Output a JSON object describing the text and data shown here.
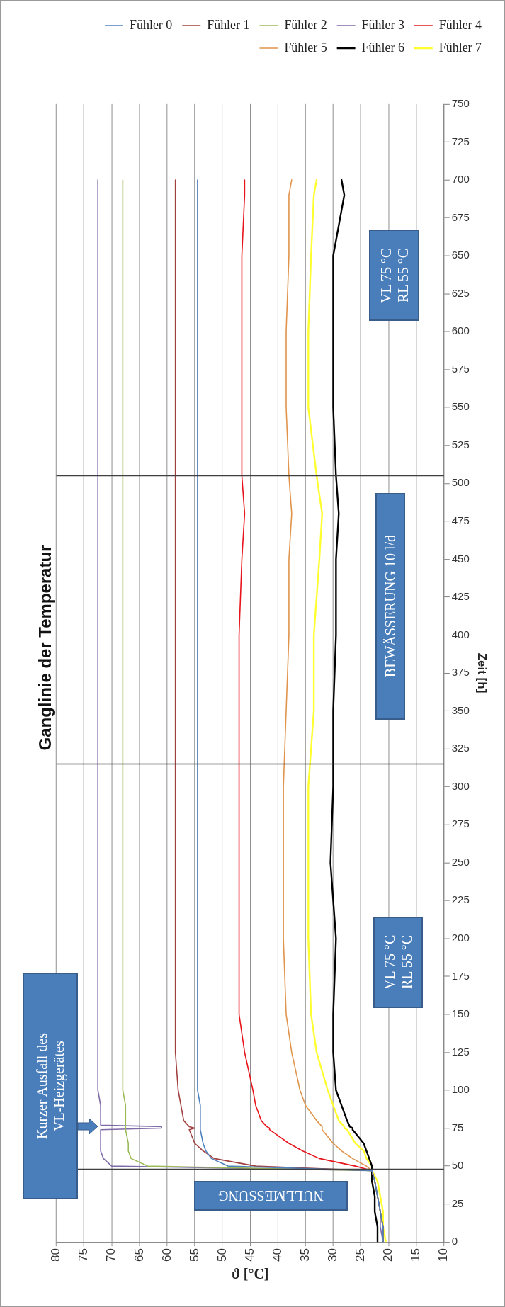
{
  "chart_data": {
    "type": "line",
    "title": "Ganglinie der Temperatur",
    "xlabel": "ϑ [°C]",
    "ylabel": "Zeit [h]",
    "series": [
      {
        "name": "Fühler 0",
        "color": "#4f81bd",
        "x": [
          21,
          21,
          21.5,
          22,
          22.5,
          23,
          49,
          52,
          53,
          53.5,
          54,
          54,
          54.5,
          54.5
        ],
        "values": [
          0,
          10,
          20,
          30,
          40,
          47,
          50,
          55,
          60,
          65,
          74,
          90,
          100,
          700
        ]
      },
      {
        "name": "Fühler 1",
        "color": "#a0413f",
        "x": [
          21,
          21,
          21.5,
          22,
          22.5,
          23,
          44,
          51.5,
          53.5,
          55,
          56,
          55,
          56,
          57,
          57.5,
          58,
          58.5,
          58.5
        ],
        "values": [
          0,
          10,
          20,
          30,
          40,
          47,
          50,
          55,
          60,
          65,
          74,
          75,
          76,
          80,
          90,
          100,
          125,
          700
        ]
      },
      {
        "name": "Fühler 2",
        "color": "#9bbb59",
        "x": [
          21,
          21,
          21.5,
          22,
          22.5,
          23,
          63.5,
          66.5,
          67,
          67,
          67.5,
          67.5,
          68,
          68
        ],
        "values": [
          0,
          10,
          20,
          30,
          40,
          47,
          50,
          55,
          60,
          65,
          74,
          90,
          100,
          700
        ]
      },
      {
        "name": "Fühler 3",
        "color": "#7f6aa8",
        "x": [
          21,
          21.5,
          21.5,
          22,
          22.5,
          23,
          70,
          71.5,
          72,
          72,
          61,
          61,
          72,
          72,
          72.5,
          72.5
        ],
        "values": [
          0,
          10,
          20,
          30,
          40,
          47,
          50,
          55,
          60,
          74,
          75,
          76,
          77,
          90,
          100,
          700
        ]
      },
      {
        "name": "Fühler 4",
        "color": "#e8141c",
        "x": [
          22.5,
          23,
          26,
          32.5,
          35.5,
          38,
          41.5,
          41.5,
          42,
          43,
          44,
          44.5,
          46,
          47,
          47,
          46.5,
          46,
          46.5,
          46.5,
          46,
          46
        ],
        "values": [
          40,
          47,
          50,
          55,
          60,
          65,
          74,
          75,
          76,
          80,
          90,
          100,
          125,
          150,
          400,
          450,
          480,
          505,
          650,
          690,
          700
        ]
      },
      {
        "name": "Fühler 5",
        "color": "#e0944c",
        "x": [
          21,
          21,
          21.5,
          22,
          22.5,
          23,
          24,
          26.5,
          28.5,
          30,
          32,
          32,
          33,
          35,
          36,
          37.5,
          38.5,
          39,
          39,
          38.5,
          38,
          38,
          37.5,
          38,
          38.5,
          38.5,
          38,
          38,
          37.5
        ],
        "values": [
          0,
          10,
          20,
          30,
          40,
          47,
          50,
          55,
          60,
          65,
          74,
          76,
          80,
          90,
          100,
          125,
          150,
          200,
          300,
          350,
          400,
          450,
          480,
          505,
          550,
          600,
          650,
          690,
          700
        ]
      },
      {
        "name": "Fühler 6",
        "color": "#000000",
        "x": [
          22,
          22,
          22.5,
          22.5,
          23,
          23,
          23.5,
          24,
          24.5,
          26.5,
          26.5,
          27,
          27.5,
          28.5,
          29.5,
          30,
          30,
          29.5,
          30.5,
          30,
          30,
          29.5,
          29.5,
          29,
          29.5,
          30,
          30,
          28,
          28.5
        ],
        "values": [
          0,
          10,
          20,
          30,
          40,
          50,
          55,
          60,
          65,
          74,
          75,
          76,
          80,
          90,
          100,
          125,
          150,
          200,
          250,
          300,
          350,
          400,
          450,
          480,
          505,
          550,
          650,
          690,
          700
        ]
      },
      {
        "name": "Fühler 7",
        "color": "#ffff30",
        "x": [
          20.5,
          21,
          21,
          21.5,
          22,
          23,
          23,
          24,
          24.5,
          26,
          27.5,
          28,
          28,
          29,
          30,
          31,
          33,
          34,
          34.5,
          34.5,
          33.5,
          33.5,
          32.5,
          32,
          33,
          34.5,
          34.5,
          34,
          33.5,
          33
        ],
        "values": [
          0,
          10,
          20,
          30,
          40,
          47,
          50,
          55,
          60,
          65,
          74,
          75,
          76,
          80,
          90,
          100,
          125,
          150,
          200,
          300,
          350,
          400,
          450,
          480,
          505,
          550,
          600,
          650,
          690,
          700
        ]
      }
    ],
    "xlim": [
      80,
      10
    ],
    "xticks": [
      80,
      75,
      70,
      65,
      60,
      55,
      50,
      45,
      40,
      35,
      30,
      25,
      20,
      15,
      10
    ],
    "ylim": [
      0,
      750
    ],
    "yticks": [
      0,
      25,
      50,
      75,
      100,
      125,
      150,
      175,
      200,
      225,
      250,
      275,
      300,
      325,
      350,
      375,
      400,
      425,
      450,
      475,
      500,
      525,
      550,
      575,
      600,
      625,
      650,
      675,
      700,
      725,
      750
    ],
    "grid": "x",
    "legend": "top right",
    "marker": "none",
    "line_style": "solid",
    "ref_lines": [
      {
        "axis": "y",
        "value": 48,
        "color": "#404040"
      },
      {
        "axis": "y",
        "value": 315,
        "color": "#404040"
      },
      {
        "axis": "y",
        "value": 505,
        "color": "#404040"
      }
    ],
    "annotations": [
      "Kurzer Ausfall des VL-Heizgerätes",
      "NULLMESSUNG",
      "VL 75 °C RL 55 °C",
      "BEWÄSSERUNG 10 l/d",
      "VL 75 °C RL 55 °C"
    ]
  }
}
